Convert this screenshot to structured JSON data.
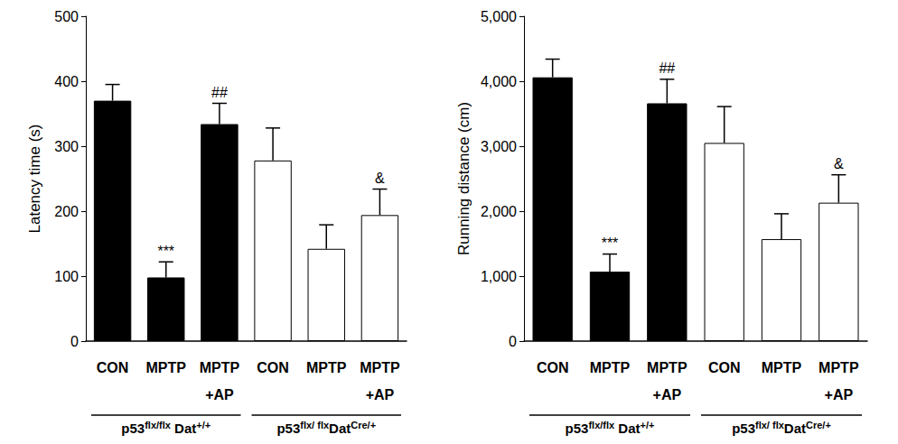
{
  "chart_data": [
    {
      "type": "bar",
      "ylabel": "Latency time (s)",
      "categories": [
        "CON",
        "MPTP",
        "MPTP\n+AP",
        "CON",
        "MPTP",
        "MPTP\n+AP"
      ],
      "values": [
        370,
        98,
        334,
        278,
        142,
        194
      ],
      "errors": [
        25,
        24,
        32,
        50,
        37,
        40
      ],
      "significance": [
        null,
        "***",
        "##",
        null,
        null,
        "&"
      ],
      "colors": [
        "#000000",
        "#000000",
        "#000000",
        "#ffffff",
        "#ffffff",
        "#ffffff"
      ],
      "groups": [
        {
          "label": [
            "p53",
            "flx/flx",
            " Dat",
            "+/+"
          ],
          "categories": [
            0,
            1,
            2
          ]
        },
        {
          "label": [
            "p53",
            "flx/ flx",
            "Dat",
            "Cre/+"
          ],
          "categories": [
            3,
            4,
            5
          ]
        }
      ],
      "ylim": [
        0,
        500
      ],
      "yticks": [
        0,
        100,
        200,
        300,
        400,
        500
      ],
      "grid": false
    },
    {
      "type": "bar",
      "ylabel": "Running distance (cm)",
      "categories": [
        "CON",
        "MPTP",
        "MPTP\n+AP",
        "CON",
        "MPTP",
        "MPTP\n+AP"
      ],
      "values": [
        4060,
        1070,
        3660,
        3050,
        1570,
        2130
      ],
      "errors": [
        280,
        270,
        370,
        560,
        390,
        430
      ],
      "significance": [
        null,
        "***",
        "##",
        null,
        null,
        "&"
      ],
      "colors": [
        "#000000",
        "#000000",
        "#000000",
        "#ffffff",
        "#ffffff",
        "#ffffff"
      ],
      "groups": [
        {
          "label": [
            "p53",
            "flx/flx",
            " Dat",
            "+/+"
          ],
          "categories": [
            0,
            1,
            2
          ]
        },
        {
          "label": [
            "p53",
            "flx/ flx",
            "Dat",
            "Cre/+"
          ],
          "categories": [
            3,
            4,
            5
          ]
        }
      ],
      "ylim": [
        0,
        5000
      ],
      "yticks": [
        0,
        1000,
        2000,
        3000,
        4000,
        5000
      ],
      "grid": false
    }
  ]
}
